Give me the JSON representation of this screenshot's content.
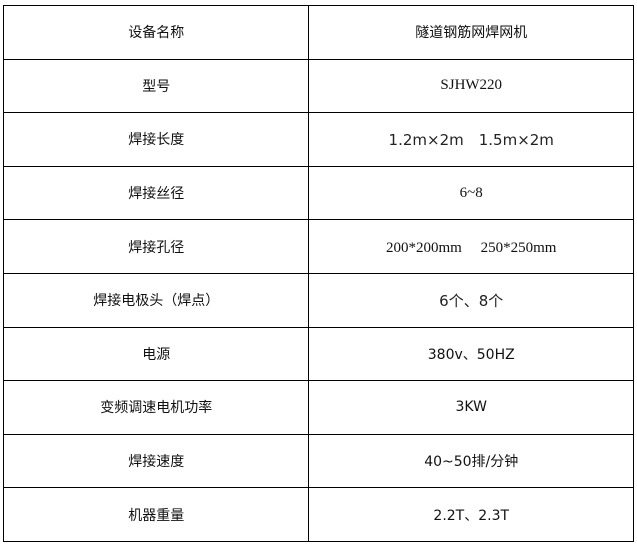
{
  "rows": [
    {
      "label": "设备名称",
      "value": "隧道钢筋网焊网机"
    },
    {
      "label": "型号",
      "value": "SJHW220"
    },
    {
      "label": "焊接长度",
      "value": "1.2m×2m　1.5m×2m"
    },
    {
      "label": "焊接丝径",
      "value": "6~8"
    },
    {
      "label": "焊接孔径",
      "value": "200*200mm　 250*250mm"
    },
    {
      "label": "焊接电极头（焊点）",
      "value": "6个、8个"
    },
    {
      "label": "电源",
      "value": "380v、50HZ"
    },
    {
      "label": "变频调速电机功率",
      "value": "3KW"
    },
    {
      "label": "焊接速度",
      "value": "40~50排/分钟"
    },
    {
      "label": "机器重量",
      "value": "2.2T、2.3T"
    }
  ]
}
